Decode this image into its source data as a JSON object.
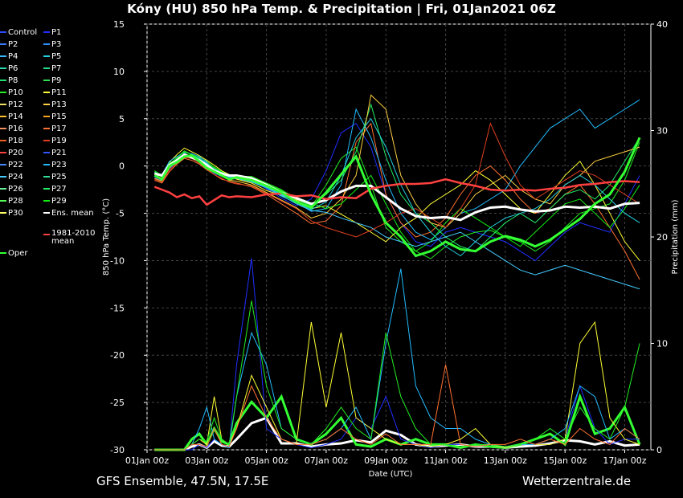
{
  "title": "Kóny  (HU)  850 hPa Temp. & Precipitation | Fri, 01Jan2021 06Z",
  "footer": {
    "left": "GFS Ensemble, 47.5N, 17.5E",
    "right": "Wetterzentrale.de"
  },
  "legend": [
    {
      "label": "Control",
      "color": "#2a4cff"
    },
    {
      "label": "P1",
      "color": "#1f2fff"
    },
    {
      "label": "P2",
      "color": "#3b7bff"
    },
    {
      "label": "P3",
      "color": "#2f8fff"
    },
    {
      "label": "P4",
      "color": "#35b8ff"
    },
    {
      "label": "P5",
      "color": "#22d0e0"
    },
    {
      "label": "P6",
      "color": "#2ad6b0"
    },
    {
      "label": "P7",
      "color": "#22dd88"
    },
    {
      "label": "P8",
      "color": "#22e070"
    },
    {
      "label": "P9",
      "color": "#30e050"
    },
    {
      "label": "P10",
      "color": "#22ee22"
    },
    {
      "label": "P11",
      "color": "#ffff33"
    },
    {
      "label": "P12",
      "color": "#f0e060"
    },
    {
      "label": "P13",
      "color": "#ffd040"
    },
    {
      "label": "P14",
      "color": "#ffc030"
    },
    {
      "label": "P15",
      "color": "#ffa020"
    },
    {
      "label": "P16",
      "color": "#f09060"
    },
    {
      "label": "P17",
      "color": "#ff7030"
    },
    {
      "label": "P18",
      "color": "#ee6020"
    },
    {
      "label": "P19",
      "color": "#e04020"
    },
    {
      "label": "P20",
      "color": "#ff4040"
    },
    {
      "label": "P21",
      "color": "#3355ff"
    },
    {
      "label": "P22",
      "color": "#4488ff"
    },
    {
      "label": "P23",
      "color": "#22bbff"
    },
    {
      "label": "P24",
      "color": "#44ccff"
    },
    {
      "label": "P25",
      "color": "#33dd99"
    },
    {
      "label": "P26",
      "color": "#66ee99"
    },
    {
      "label": "P27",
      "color": "#22ee66"
    },
    {
      "label": "P28",
      "color": "#55ff55"
    },
    {
      "label": "P29",
      "color": "#11ee11"
    },
    {
      "label": "P30",
      "color": "#ffff66"
    },
    {
      "label": "Ens. mean",
      "color": "#ffffff"
    },
    {
      "label": "1981-2010 mean",
      "color": "#ff4040"
    },
    {
      "label": "Oper",
      "color": "#33ff33"
    }
  ],
  "chart_data": {
    "type": "line",
    "xlabel": "Date (UTC)",
    "ylabel_left": "850 hPa Temp. (°C)",
    "ylabel_right": "Precipitation (mm)",
    "ylim_left": [
      -30,
      15
    ],
    "ylim_right": [
      0,
      40
    ],
    "yticks_left": [
      15,
      10,
      5,
      0,
      -5,
      -10,
      -15,
      -20,
      -25,
      -30
    ],
    "yticks_right": [
      40,
      30,
      20,
      10,
      0
    ],
    "xticks": [
      "01Jan 00z",
      "03Jan 00z",
      "05Jan 00z",
      "07Jan 00z",
      "09Jan 00z",
      "11Jan 00z",
      "13Jan 00z",
      "15Jan 00z",
      "17Jan 00z"
    ],
    "grid": true,
    "x_days": [
      0.25,
      0.5,
      0.75,
      1,
      1.25,
      1.5,
      1.75,
      2,
      2.25,
      2.5,
      2.75,
      3,
      3.5,
      4,
      4.5,
      5,
      5.5,
      6,
      6.5,
      7,
      7.5,
      8,
      8.5,
      9,
      9.5,
      10,
      10.5,
      11,
      11.5,
      12,
      12.5,
      13,
      13.5,
      14,
      14.5,
      15,
      15.5,
      16,
      16.5
    ],
    "series": [
      {
        "name": "Ens. mean",
        "color": "#ffffff",
        "values": [
          -0.8,
          -1.0,
          0.1,
          0.6,
          1.2,
          0.9,
          0.6,
          0.1,
          -0.5,
          -0.8,
          -1.0,
          -1.0,
          -1.3,
          -2.0,
          -2.8,
          -3.4,
          -4.0,
          -3.6,
          -2.7,
          -2.1,
          -2.1,
          -3.3,
          -4.5,
          -5.3,
          -5.5,
          -5.4,
          -5.7,
          -4.9,
          -4.4,
          -4.3,
          -4.6,
          -4.8,
          -4.7,
          -4.3,
          -4.4,
          -4.3,
          -4.5,
          -4.0,
          -3.9
        ]
      },
      {
        "name": "1981-2010 mean",
        "color": "#ff4040",
        "values": [
          -2.2,
          -2.5,
          -2.8,
          -3.3,
          -3.0,
          -3.4,
          -3.2,
          -4.1,
          -3.6,
          -3.1,
          -3.3,
          -3.2,
          -3.3,
          -3.0,
          -2.9,
          -3.2,
          -3.1,
          -3.5,
          -3.3,
          -3.4,
          -2.4,
          -2.1,
          -1.9,
          -1.9,
          -1.8,
          -1.4,
          -1.8,
          -2.1,
          -2.5,
          -2.6,
          -2.5,
          -2.6,
          -2.4,
          -2.3,
          -2.0,
          -1.9,
          -1.7,
          -1.6,
          -1.7
        ]
      },
      {
        "name": "Oper",
        "color": "#33ff33",
        "values": [
          -1.0,
          -1.4,
          0.0,
          0.4,
          1.0,
          1.1,
          0.5,
          -0.2,
          -0.6,
          -1.0,
          -1.4,
          -1.2,
          -1.5,
          -2.1,
          -2.8,
          -3.8,
          -4.4,
          -2.8,
          -0.9,
          1.0,
          -3.0,
          -6.0,
          -7.5,
          -9.5,
          -9.0,
          -8.0,
          -8.8,
          -9.0,
          -8.0,
          -7.4,
          -7.8,
          -8.5,
          -7.8,
          -6.7,
          -5.6,
          -4.0,
          -3.0,
          -0.6,
          3.0
        ]
      },
      {
        "name": "P1",
        "color": "#1f2fff",
        "values": [
          -1.2,
          -1.5,
          -0.3,
          0.4,
          1.1,
          0.8,
          0.4,
          -0.2,
          -0.8,
          -1.1,
          -1.3,
          -1.4,
          -1.6,
          -2.4,
          -3.4,
          -4.2,
          -3.5,
          -0.5,
          3.5,
          4.5,
          2.0,
          -3.0,
          -6.0,
          -8.0,
          -8.5,
          -7.0,
          -6.5,
          -7.0,
          -7.5,
          -8.0,
          -9.0,
          -10.0,
          -8.5,
          -7.0,
          -6.0,
          -6.5,
          -7.0,
          -4.0,
          -1.0
        ]
      },
      {
        "name": "P10",
        "color": "#22ee22",
        "values": [
          -0.6,
          -1.2,
          0.2,
          0.9,
          1.6,
          1.2,
          0.9,
          0.5,
          -0.1,
          -0.6,
          -0.9,
          -1.1,
          -1.1,
          -1.8,
          -2.5,
          -3.5,
          -4.3,
          -2.0,
          0.8,
          2.0,
          -2.0,
          -6.5,
          -8.0,
          -9.0,
          -9.8,
          -8.5,
          -7.5,
          -7.0,
          -6.8,
          -7.5,
          -8.0,
          -9.0,
          -8.0,
          -6.5,
          -5.0,
          -4.5,
          -4.0,
          -1.5,
          2.5
        ]
      },
      {
        "name": "P11",
        "color": "#ffff33",
        "values": [
          -0.9,
          -1.1,
          0.4,
          1.2,
          1.9,
          1.5,
          1.1,
          0.6,
          0.1,
          -0.5,
          -0.9,
          -1.4,
          -1.8,
          -2.6,
          -3.1,
          -3.6,
          -4.5,
          -4.2,
          -5.1,
          -6.0,
          -7.0,
          -8.0,
          -6.5,
          -5.5,
          -4.0,
          -3.0,
          -2.0,
          -0.5,
          -1.5,
          -3.0,
          -4.5,
          -5.0,
          -3.0,
          -1.0,
          0.5,
          -2.0,
          -5.0,
          -8.0,
          -10.0
        ]
      },
      {
        "name": "P17",
        "color": "#ff7030",
        "values": [
          -1.5,
          -1.8,
          -0.6,
          0.2,
          0.8,
          0.6,
          0.2,
          -0.4,
          -0.9,
          -1.4,
          -1.6,
          -1.8,
          -2.2,
          -3.0,
          -4.0,
          -5.0,
          -6.1,
          -5.8,
          -4.2,
          2.5,
          4.5,
          -3.0,
          -6.0,
          -7.5,
          -7.0,
          -5.5,
          -3.0,
          -1.0,
          0.0,
          -1.5,
          -3.5,
          -5.0,
          -4.5,
          -3.0,
          -2.0,
          -4.0,
          -6.5,
          -9.0,
          -12.0
        ]
      },
      {
        "name": "P23",
        "color": "#22bbff",
        "values": [
          -0.7,
          -0.9,
          0.5,
          1.0,
          1.4,
          1.3,
          1.0,
          0.4,
          -0.3,
          -0.7,
          -1.0,
          -1.0,
          -1.5,
          -2.2,
          -3.0,
          -3.8,
          -4.8,
          -4.5,
          -2.0,
          6.0,
          3.0,
          -1.5,
          -5.0,
          -7.0,
          -7.8,
          -6.5,
          -5.0,
          -4.5,
          -3.5,
          -2.5,
          0.0,
          2.0,
          4.0,
          5.0,
          6.0,
          4.0,
          5.0,
          6.0,
          7.0
        ]
      },
      {
        "name": "P27",
        "color": "#22ee66",
        "values": [
          -1.1,
          -1.3,
          0.0,
          0.7,
          1.3,
          1.0,
          0.7,
          0.2,
          -0.4,
          -0.8,
          -1.1,
          -1.3,
          -1.4,
          -2.0,
          -2.7,
          -3.4,
          -4.2,
          -3.0,
          -1.5,
          1.5,
          6.5,
          1.0,
          -3.0,
          -5.0,
          -6.0,
          -7.5,
          -8.5,
          -9.0,
          -7.5,
          -6.0,
          -5.0,
          -6.0,
          -4.5,
          -3.0,
          -2.5,
          -3.5,
          -2.0,
          0.5,
          3.0
        ]
      },
      {
        "name": "P29",
        "color": "#11ee11",
        "values": [
          -0.5,
          -1.0,
          0.3,
          0.8,
          1.5,
          1.2,
          0.8,
          0.3,
          -0.2,
          -0.6,
          -1.0,
          -1.2,
          -1.2,
          -1.9,
          -2.6,
          -3.3,
          -3.9,
          -4.5,
          -4.0,
          -2.5,
          -1.0,
          -4.0,
          -7.0,
          -9.0,
          -8.0,
          -6.0,
          -4.5,
          -5.5,
          -6.5,
          -7.5,
          -8.5,
          -7.0,
          -5.5,
          -4.0,
          -3.5,
          -5.0,
          -6.5,
          -4.5,
          -2.0
        ]
      },
      {
        "name": "P13",
        "color": "#ffd040",
        "values": [
          -1.3,
          -1.6,
          -0.2,
          0.5,
          1.0,
          0.9,
          0.5,
          0.0,
          -0.6,
          -1.0,
          -1.5,
          -1.6,
          -2.0,
          -2.8,
          -3.6,
          -4.4,
          -5.5,
          -5.0,
          -3.5,
          -1.0,
          7.5,
          6.0,
          -1.0,
          -4.0,
          -6.0,
          -6.5,
          -5.0,
          -3.0,
          -2.0,
          -1.0,
          -2.5,
          -3.5,
          -4.0,
          -2.0,
          -1.0,
          0.5,
          1.0,
          1.5,
          2.0
        ]
      },
      {
        "name": "P24",
        "color": "#44ccff",
        "values": [
          -0.8,
          -1.1,
          0.1,
          0.7,
          1.2,
          1.0,
          0.6,
          0.1,
          -0.5,
          -0.8,
          -1.2,
          -1.3,
          -1.7,
          -2.3,
          -3.1,
          -4.0,
          -4.7,
          -4.9,
          -5.5,
          -6.0,
          -6.5,
          -7.5,
          -8.0,
          -8.5,
          -8.0,
          -7.5,
          -7.0,
          -8.0,
          -9.0,
          -10.0,
          -11.0,
          -11.5,
          -11.0,
          -10.5,
          -11.0,
          -11.5,
          -12.0,
          -12.5,
          -13.0
        ]
      },
      {
        "name": "P19",
        "color": "#e04020",
        "values": [
          -1.4,
          -1.7,
          -0.4,
          0.3,
          0.9,
          0.8,
          0.3,
          -0.3,
          -0.9,
          -1.3,
          -1.7,
          -1.9,
          -2.1,
          -2.9,
          -3.7,
          -4.5,
          -5.8,
          -6.5,
          -7.0,
          -7.5,
          -6.8,
          -6.0,
          -5.0,
          -4.5,
          -5.5,
          -6.5,
          -4.5,
          -2.0,
          4.5,
          1.0,
          -2.0,
          -3.5,
          -2.5,
          -1.5,
          -0.5,
          -1.0,
          -2.0,
          -3.0,
          -4.0
        ]
      },
      {
        "name": "P5",
        "color": "#22d0e0",
        "values": [
          -0.9,
          -1.0,
          0.2,
          0.6,
          1.1,
          1.1,
          0.8,
          0.3,
          -0.4,
          -0.9,
          -1.1,
          -1.2,
          -1.6,
          -2.3,
          -3.2,
          -3.9,
          -4.6,
          -3.8,
          -1.0,
          3.0,
          5.0,
          2.0,
          -2.0,
          -5.0,
          -7.0,
          -8.5,
          -9.5,
          -8.0,
          -6.5,
          -5.5,
          -5.0,
          -4.5,
          -3.5,
          -2.0,
          -1.0,
          -2.0,
          -3.5,
          -5.0,
          -6.0
        ]
      }
    ],
    "precip_series": [
      {
        "name": "Ens. mean",
        "color": "#ffffff",
        "values": [
          0,
          0,
          0,
          0,
          0,
          0.3,
          0.5,
          0.2,
          0.8,
          0.4,
          0.3,
          1.0,
          2.5,
          3.0,
          0.6,
          0.6,
          0.3,
          0.5,
          0.6,
          0.9,
          0.7,
          1.8,
          1.4,
          0.5,
          0.3,
          0.4,
          0.5,
          0.3,
          0.3,
          0.2,
          0.3,
          0.4,
          0.6,
          0.9,
          0.8,
          0.5,
          0.8,
          0.4,
          0.5
        ]
      },
      {
        "name": "Oper",
        "color": "#33ff33",
        "values": [
          0,
          0,
          0,
          0,
          0,
          1.0,
          1.5,
          0.5,
          2.0,
          0.8,
          0.5,
          2.5,
          4.5,
          3.0,
          5.0,
          1.0,
          0.5,
          1.5,
          3.0,
          0.5,
          0.3,
          1.0,
          0.5,
          1.0,
          0.5,
          0.5,
          0.2,
          0.5,
          0.3,
          0.2,
          0.5,
          1.0,
          1.5,
          0.5,
          5.0,
          1.5,
          2.0,
          4.0,
          0.5
        ]
      },
      {
        "name": "P1",
        "color": "#1f2fff",
        "values": [
          0,
          0,
          0,
          0,
          0,
          0,
          0.5,
          0.2,
          1.0,
          0.5,
          0.2,
          8.0,
          18.0,
          2.0,
          1.0,
          0.5,
          0.2,
          0.5,
          1.0,
          3.0,
          2.0,
          5.0,
          1.0,
          0.5,
          0.2,
          0.5,
          0.5,
          0.3,
          0.5,
          0.2,
          0.5,
          0.5,
          0.5,
          1.0,
          6.0,
          2.0,
          0.5,
          1.0,
          1.0
        ]
      },
      {
        "name": "P11",
        "color": "#ffff33",
        "values": [
          0,
          0,
          0,
          0,
          0,
          0.5,
          1.0,
          0.5,
          5.0,
          1.0,
          0.5,
          2.0,
          7.0,
          4.0,
          1.0,
          0.5,
          12.0,
          4.0,
          11.0,
          3.0,
          2.0,
          1.0,
          0.5,
          0.5,
          0.3,
          0.5,
          1.0,
          2.0,
          0.5,
          0.2,
          0.5,
          0.5,
          0.5,
          1.0,
          10.0,
          12.0,
          3.0,
          1.0,
          0.5
        ]
      },
      {
        "name": "P23",
        "color": "#22bbff",
        "values": [
          0,
          0,
          0,
          0,
          0,
          0.5,
          2.0,
          4.0,
          1.0,
          0.5,
          0.2,
          5.0,
          11.0,
          8.0,
          2.0,
          1.0,
          0.5,
          1.0,
          2.0,
          4.0,
          1.0,
          10.0,
          17.0,
          6.0,
          3.0,
          2.0,
          2.0,
          1.0,
          0.5,
          0.3,
          0.5,
          0.5,
          1.0,
          2.0,
          6.0,
          5.0,
          1.0,
          2.0,
          1.0
        ]
      },
      {
        "name": "P10",
        "color": "#22ee22",
        "values": [
          0,
          0,
          0,
          0,
          0,
          0.5,
          1.0,
          0.8,
          3.0,
          1.0,
          0.5,
          5.0,
          14.0,
          6.0,
          2.0,
          1.0,
          0.5,
          2.0,
          4.0,
          2.0,
          1.0,
          11.0,
          5.0,
          2.0,
          0.5,
          0.5,
          0.3,
          0.5,
          0.5,
          0.3,
          0.5,
          1.0,
          2.0,
          1.0,
          4.0,
          2.0,
          1.0,
          4.0,
          10.0
        ]
      },
      {
        "name": "P17",
        "color": "#ff7030",
        "values": [
          0,
          0,
          0,
          0,
          0,
          0.5,
          0.5,
          0.3,
          2.0,
          0.5,
          0.3,
          2.0,
          6.0,
          3.0,
          1.0,
          0.5,
          0.5,
          1.0,
          2.0,
          1.0,
          0.5,
          1.5,
          0.5,
          0.5,
          0.5,
          8.0,
          0.5,
          0.3,
          0.5,
          0.5,
          1.0,
          0.5,
          1.0,
          0.5,
          2.0,
          1.0,
          0.5,
          2.0,
          1.0
        ]
      }
    ]
  }
}
